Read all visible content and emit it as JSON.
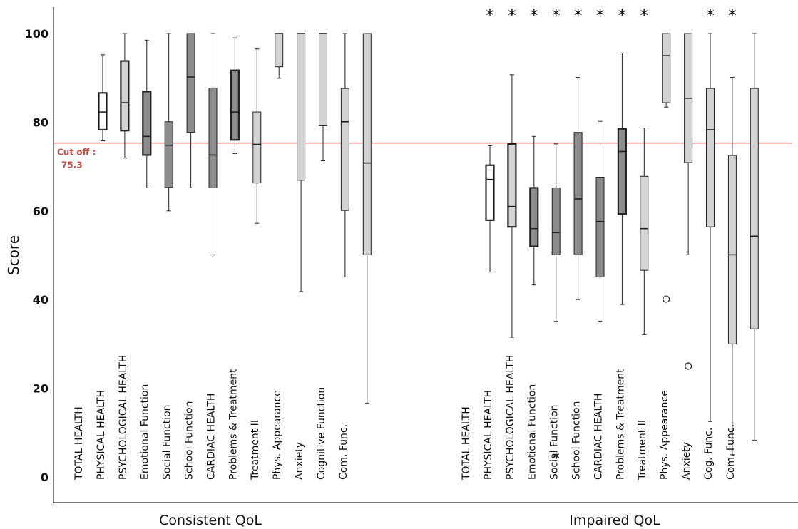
{
  "chart_data": {
    "type": "boxplot",
    "ylabel": "Score",
    "ylim": [
      0,
      100
    ],
    "yticks": [
      0,
      20,
      40,
      60,
      80,
      100
    ],
    "grid": false,
    "cutoff": {
      "value": 75.3,
      "label": "Cut off :",
      "value_label": "75.3",
      "color": "#e06666"
    },
    "style_colors": {
      "white": "#ffffff",
      "dark": "#8c8c8c",
      "light": "#d3d3d3"
    },
    "groups": [
      {
        "label": "Consistent QoL",
        "items": [
          {
            "name": "TOTAL HEALTH",
            "style": "white",
            "bold": true,
            "min": 75.8,
            "q1": 78.3,
            "median": 82.3,
            "q3": 86.6,
            "max": 95.2
          },
          {
            "name": "PHYSICAL HEALTH",
            "style": "light",
            "bold": true,
            "min": 71.9,
            "q1": 78.1,
            "median": 84.4,
            "q3": 93.8,
            "max": 100
          },
          {
            "name": "PSYCHOLOGICAL HEALTH",
            "style": "dark",
            "bold": true,
            "min": 65.2,
            "q1": 72.6,
            "median": 76.8,
            "q3": 86.9,
            "max": 98.5
          },
          {
            "name": "Emotional Function",
            "style": "dark",
            "min": 60.0,
            "q1": 65.3,
            "median": 74.8,
            "q3": 80.1,
            "max": 100
          },
          {
            "name": "Social Function",
            "style": "dark",
            "min": 65.2,
            "q1": 77.7,
            "median": 90.2,
            "q3": 100,
            "max": 100
          },
          {
            "name": "School Function",
            "style": "dark",
            "min": 50.1,
            "q1": 65.2,
            "median": 72.6,
            "q3": 87.7,
            "max": 100
          },
          {
            "name": "CARDIAC HEALTH",
            "style": "dark",
            "bold": true,
            "min": 72.9,
            "q1": 76.0,
            "median": 82.3,
            "q3": 91.7,
            "max": 99.0
          },
          {
            "name": "Problems & Treatment",
            "style": "light",
            "min": 57.2,
            "q1": 66.3,
            "median": 75.0,
            "q3": 82.3,
            "max": 96.5
          },
          {
            "name": "Treatment II",
            "style": "light",
            "min": 89.9,
            "q1": 92.5,
            "median": 100,
            "q3": 100,
            "max": 100
          },
          {
            "name": "Phys. Appearance",
            "style": "light",
            "min": 41.8,
            "q1": 66.9,
            "median": 100,
            "q3": 100,
            "max": 100
          },
          {
            "name": "Anxiety",
            "style": "light",
            "min": 71.3,
            "q1": 79.2,
            "median": 100,
            "q3": 100,
            "max": 100
          },
          {
            "name": "Cognitive Function",
            "style": "light",
            "min": 45.1,
            "q1": 60.1,
            "median": 80.1,
            "q3": 87.6,
            "max": 100
          },
          {
            "name": "Com. Func.",
            "style": "light",
            "min": 16.6,
            "q1": 50.1,
            "median": 70.8,
            "q3": 100,
            "max": 100
          }
        ]
      },
      {
        "label": "Impaired QoL",
        "items": [
          {
            "name": "TOTAL HEALTH",
            "style": "white",
            "bold": true,
            "sig": true,
            "min": 46.2,
            "q1": 57.9,
            "median": 67.1,
            "q3": 70.3,
            "max": 74.7
          },
          {
            "name": "PHYSICAL HEALTH",
            "style": "light",
            "bold": true,
            "sig": true,
            "min": 31.5,
            "q1": 56.4,
            "median": 61.0,
            "q3": 75.1,
            "max": 90.7
          },
          {
            "name": "PSYCHOLOGICAL HEALTH",
            "style": "dark",
            "bold": true,
            "sig": true,
            "min": 43.3,
            "q1": 52.0,
            "median": 56.0,
            "q3": 65.2,
            "max": 76.8
          },
          {
            "name": "Emotional Function",
            "style": "dark",
            "sig": true,
            "min": 35.1,
            "q1": 50.1,
            "median": 55.1,
            "q3": 65.2,
            "max": 75.1,
            "outliers": [
              {
                "value": 5.0,
                "marker": "*"
              }
            ]
          },
          {
            "name": "Social Function",
            "style": "dark",
            "sig": true,
            "min": 40.0,
            "q1": 50.1,
            "median": 62.7,
            "q3": 77.7,
            "max": 90.1
          },
          {
            "name": "School Function",
            "style": "dark",
            "sig": true,
            "min": 35.1,
            "q1": 45.1,
            "median": 57.6,
            "q3": 67.6,
            "max": 80.2
          },
          {
            "name": "CARDIAC HEALTH",
            "style": "dark",
            "bold": true,
            "sig": true,
            "min": 38.9,
            "q1": 59.3,
            "median": 73.4,
            "q3": 78.5,
            "max": 95.6
          },
          {
            "name": "Problems & Treatment",
            "style": "light",
            "sig": true,
            "min": 32.1,
            "q1": 46.6,
            "median": 56.0,
            "q3": 67.8,
            "max": 78.7
          },
          {
            "name": "Treatment II",
            "style": "light",
            "min": 83.4,
            "q1": 84.4,
            "median": 95.0,
            "q3": 100,
            "max": 100,
            "outliers": [
              {
                "value": 40.1,
                "marker": "o"
              }
            ]
          },
          {
            "name": "Phys. Appearance",
            "style": "light",
            "min": 50.1,
            "q1": 70.9,
            "median": 85.4,
            "q3": 100,
            "max": 100,
            "outliers": [
              {
                "value": 25.0,
                "marker": "o"
              }
            ]
          },
          {
            "name": "Anxiety",
            "style": "light",
            "sig": true,
            "min": 12.5,
            "q1": 56.4,
            "median": 78.3,
            "q3": 87.6,
            "max": 100
          },
          {
            "name": "Cog. Func.",
            "style": "light",
            "sig": true,
            "min": 5.0,
            "q1": 30.0,
            "median": 50.1,
            "q3": 72.5,
            "max": 90.1
          },
          {
            "name": "Com. Func.",
            "style": "light",
            "min": 8.3,
            "q1": 33.4,
            "median": 54.3,
            "q3": 87.6,
            "max": 100
          }
        ]
      }
    ]
  }
}
